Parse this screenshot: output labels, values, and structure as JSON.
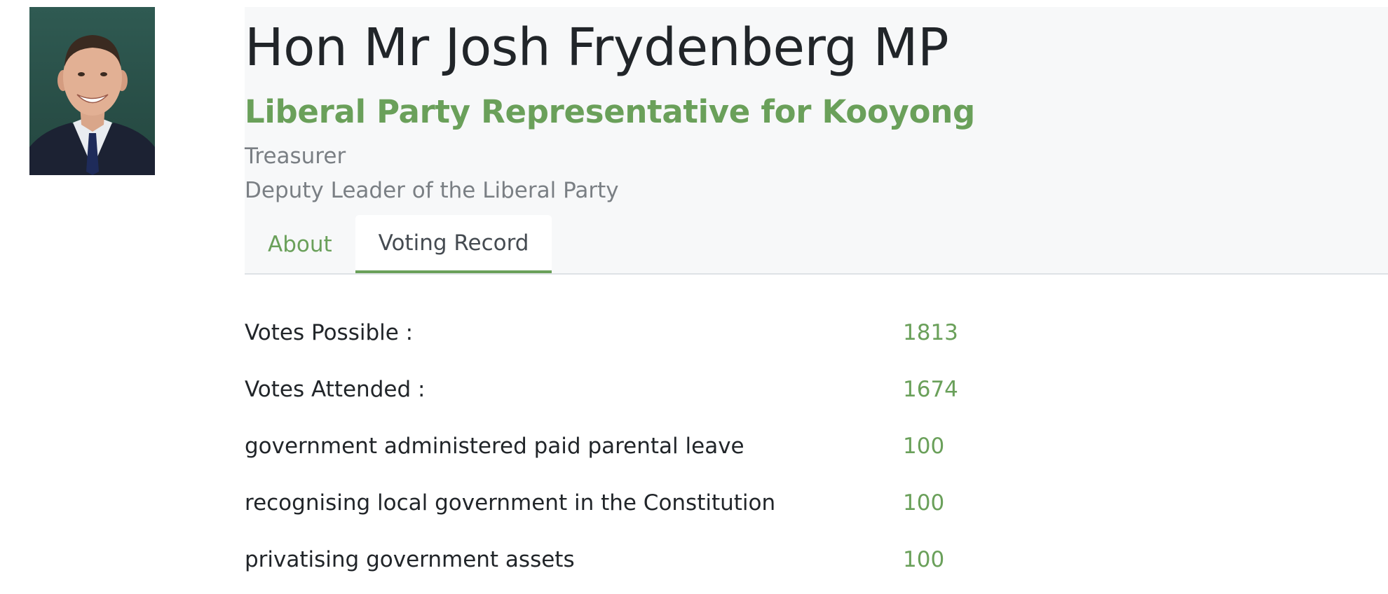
{
  "profile": {
    "photo_alt": "portrait",
    "name": "Hon Mr Josh Frydenberg MP",
    "subtitle": "Liberal Party Representative for Kooyong",
    "roles": [
      "Treasurer",
      "Deputy Leader of the Liberal Party"
    ]
  },
  "tabs": [
    {
      "label": "About",
      "active": false
    },
    {
      "label": "Voting Record",
      "active": true
    }
  ],
  "stats": [
    {
      "label": "Votes Possible :",
      "value": "1813"
    },
    {
      "label": "Votes Attended :",
      "value": "1674"
    },
    {
      "label": "government administered paid parental leave",
      "value": "100"
    },
    {
      "label": "recognising local government in the Constitution",
      "value": "100"
    },
    {
      "label": "privatising government assets",
      "value": "100"
    }
  ],
  "colors": {
    "accent": "#6aa05a",
    "header_bg": "#f7f8f9",
    "muted_text": "#7a7f84"
  }
}
